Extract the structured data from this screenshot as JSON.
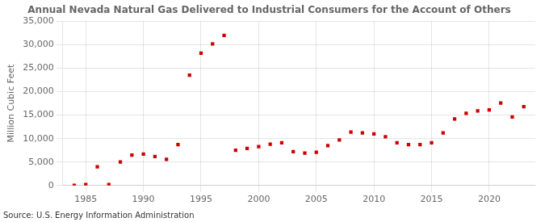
{
  "chart_data": {
    "type": "scatter",
    "title": "Annual Nevada Natural Gas Delivered to Industrial Consumers for the Account of Others",
    "ylabel": "Million Cubic Feet",
    "annotations": [
      "Source: U.S. Energy Information Administration"
    ],
    "x": [
      1984,
      1985,
      1986,
      1987,
      1988,
      1989,
      1990,
      1991,
      1992,
      1993,
      1994,
      1995,
      1996,
      1997,
      1998,
      1999,
      2000,
      2001,
      2002,
      2003,
      2004,
      2005,
      2006,
      2007,
      2008,
      2009,
      2010,
      2011,
      2012,
      2013,
      2014,
      2015,
      2016,
      2017,
      2018,
      2019,
      2020,
      2021,
      2022,
      2023
    ],
    "values": [
      50,
      200,
      4000,
      200,
      5000,
      6500,
      6700,
      6200,
      5600,
      8700,
      23500,
      28200,
      30200,
      32000,
      7500,
      7900,
      8300,
      8800,
      9100,
      7200,
      6900,
      7100,
      8500,
      9700,
      11400,
      11200,
      11000,
      10400,
      9100,
      8700,
      8700,
      9100,
      11200,
      14200,
      15400,
      15900,
      16100,
      17600,
      14600,
      16800
    ],
    "color": "#cc0000",
    "marker": "square",
    "xlim": [
      1983,
      2024
    ],
    "ylim": [
      0,
      35000
    ],
    "xticks": [
      1985,
      1990,
      1995,
      2000,
      2005,
      2010,
      2015,
      2020
    ],
    "yticks": [
      0,
      {
        "value": 5000,
        "label": "5,000"
      },
      {
        "value": 10000,
        "label": "10,000"
      },
      {
        "value": 15000,
        "label": "15,000"
      },
      {
        "value": 20000,
        "label": "20,000"
      },
      {
        "value": 25000,
        "label": "25,000"
      },
      {
        "value": 30000,
        "label": "30,000"
      },
      {
        "value": 35000,
        "label": "35,000"
      }
    ],
    "grid": true
  }
}
